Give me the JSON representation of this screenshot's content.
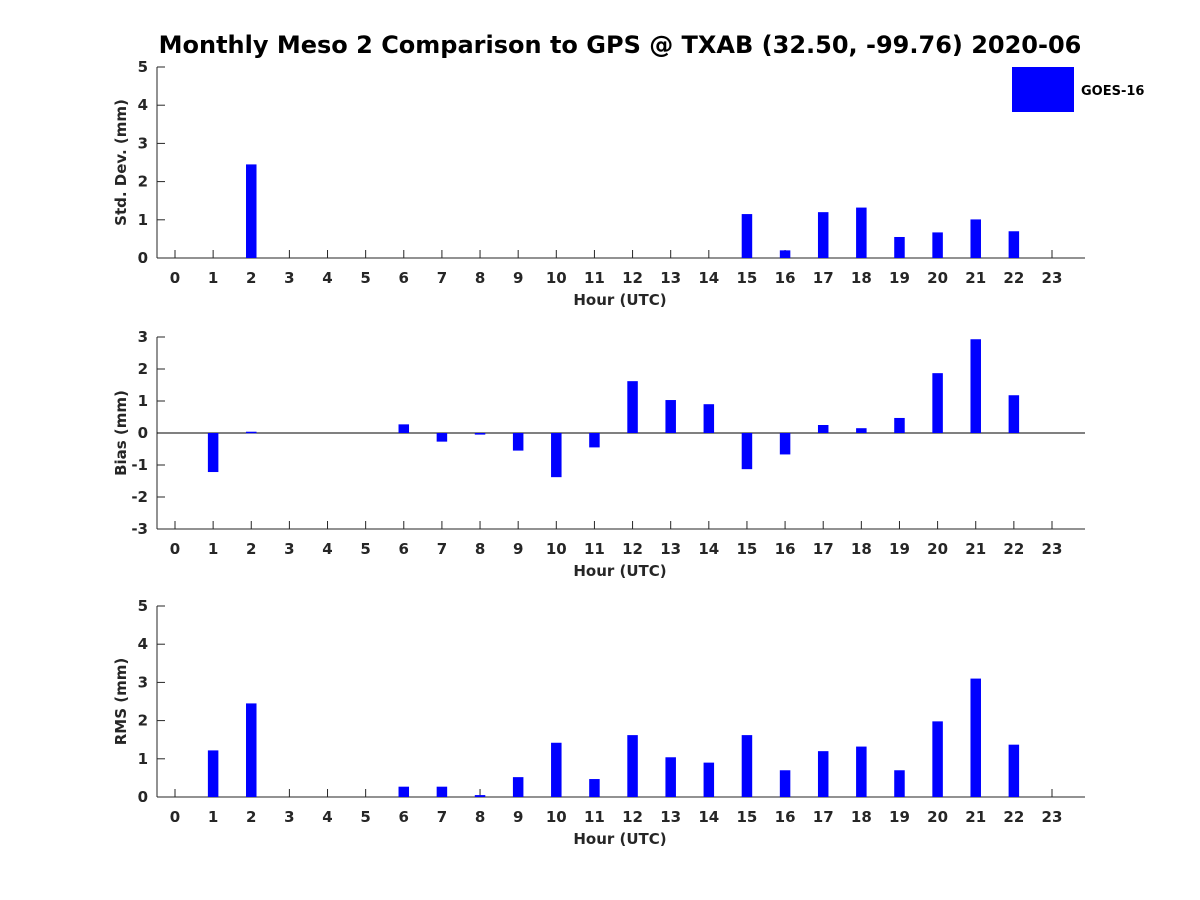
{
  "title": "Monthly Meso 2 Comparison to GPS @ TXAB (32.50, -99.76) 2020-06",
  "legend": {
    "label": "GOES-16",
    "position": "top-right"
  },
  "colors": {
    "bar": "#0000ff",
    "axis": "#262626"
  },
  "chart_data": [
    {
      "type": "bar",
      "ylabel": "Std. Dev. (mm)",
      "xlabel": "Hour (UTC)",
      "ylim": [
        0,
        5
      ],
      "yticks": [
        0,
        1,
        2,
        3,
        4,
        5
      ],
      "categories": [
        0,
        1,
        2,
        3,
        4,
        5,
        6,
        7,
        8,
        9,
        10,
        11,
        12,
        13,
        14,
        15,
        16,
        17,
        18,
        19,
        20,
        21,
        22,
        23
      ],
      "series": [
        {
          "name": "GOES-16",
          "values": [
            0,
            0,
            2.45,
            0,
            0,
            0,
            0,
            0,
            0,
            0,
            0,
            0,
            0,
            0,
            0,
            1.15,
            0.2,
            1.2,
            1.32,
            0.55,
            0.67,
            1.01,
            0.7,
            0
          ]
        }
      ]
    },
    {
      "type": "bar",
      "ylabel": "Bias (mm)",
      "xlabel": "Hour (UTC)",
      "ylim": [
        -3,
        3
      ],
      "yticks": [
        -3,
        -2,
        -1,
        0,
        1,
        2,
        3
      ],
      "categories": [
        0,
        1,
        2,
        3,
        4,
        5,
        6,
        7,
        8,
        9,
        10,
        11,
        12,
        13,
        14,
        15,
        16,
        17,
        18,
        19,
        20,
        21,
        22,
        23
      ],
      "series": [
        {
          "name": "GOES-16",
          "values": [
            0,
            -1.22,
            0.04,
            0,
            0,
            0,
            0.27,
            -0.27,
            -0.05,
            -0.55,
            -1.38,
            -0.45,
            1.62,
            1.03,
            0.9,
            -1.13,
            -0.67,
            0.25,
            0.15,
            0.47,
            1.87,
            2.93,
            1.18,
            0
          ]
        }
      ]
    },
    {
      "type": "bar",
      "ylabel": "RMS (mm)",
      "xlabel": "Hour (UTC)",
      "ylim": [
        0,
        5
      ],
      "yticks": [
        0,
        1,
        2,
        3,
        4,
        5
      ],
      "categories": [
        0,
        1,
        2,
        3,
        4,
        5,
        6,
        7,
        8,
        9,
        10,
        11,
        12,
        13,
        14,
        15,
        16,
        17,
        18,
        19,
        20,
        21,
        22,
        23
      ],
      "series": [
        {
          "name": "GOES-16",
          "values": [
            0,
            1.22,
            2.45,
            0,
            0,
            0,
            0.27,
            0.27,
            0.05,
            0.52,
            1.42,
            0.47,
            1.62,
            1.04,
            0.9,
            1.62,
            0.7,
            1.2,
            1.32,
            0.7,
            1.98,
            3.1,
            1.37,
            0
          ]
        }
      ]
    }
  ]
}
